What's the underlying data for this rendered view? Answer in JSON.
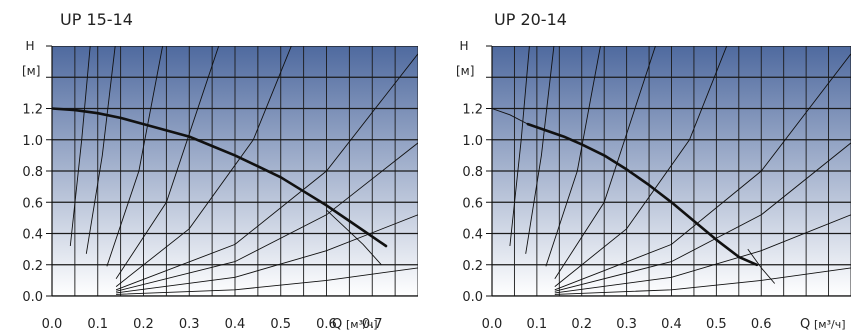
{
  "chart_data": [
    {
      "type": "line",
      "title": "UP 15-14",
      "ylabel": "H",
      "ylabel_unit": "[м]",
      "xlabel": "Q",
      "xlabel_unit": "[м³/ч]",
      "xlim": [
        0,
        0.8
      ],
      "ylim": [
        0,
        1.6
      ],
      "xticks": [
        0.0,
        0.1,
        0.2,
        0.3,
        0.4,
        0.5,
        0.6,
        0.7
      ],
      "xtick_labels": [
        "0.0",
        "0.1",
        "0.2",
        "0.3",
        "0.4",
        "0.5",
        "0.6",
        "0.7"
      ],
      "yticks": [
        0.0,
        0.2,
        0.4,
        0.6,
        0.8,
        1.0,
        1.2
      ],
      "ytick_labels": [
        "0.0",
        "0.2",
        "0.4",
        "0.6",
        "0.8",
        "1.0",
        "1.2"
      ],
      "grid": true,
      "colors": {
        "top": "#4f6a9f",
        "bottom": "#ffffff",
        "curve": "#111111",
        "grid": "#1a1a1a"
      },
      "series": [
        {
          "role": "pump-curve",
          "x": [
            0.0,
            0.05,
            0.1,
            0.15,
            0.2,
            0.25,
            0.3,
            0.35,
            0.4,
            0.45,
            0.5,
            0.55,
            0.6,
            0.65,
            0.7,
            0.73
          ],
          "y": [
            1.2,
            1.19,
            1.17,
            1.14,
            1.1,
            1.06,
            1.02,
            0.96,
            0.9,
            0.83,
            0.76,
            0.67,
            0.58,
            0.48,
            0.38,
            0.32
          ]
        }
      ],
      "system_curves": [
        {
          "x": [
            0.04,
            0.065,
            0.085
          ],
          "y": [
            0.32,
            1.0,
            1.65
          ]
        },
        {
          "x": [
            0.075,
            0.11,
            0.14
          ],
          "y": [
            0.27,
            0.9,
            1.65
          ]
        },
        {
          "x": [
            0.12,
            0.19,
            0.245
          ],
          "y": [
            0.19,
            0.8,
            1.65
          ]
        },
        {
          "x": [
            0.14,
            0.25,
            0.37
          ],
          "y": [
            0.11,
            0.6,
            1.65
          ]
        },
        {
          "x": [
            0.14,
            0.3,
            0.44,
            0.53
          ],
          "y": [
            0.06,
            0.43,
            1.0,
            1.65
          ]
        },
        {
          "x": [
            0.14,
            0.4,
            0.6,
            0.8
          ],
          "y": [
            0.04,
            0.33,
            0.8,
            1.55
          ]
        },
        {
          "x": [
            0.14,
            0.4,
            0.6,
            0.8
          ],
          "y": [
            0.03,
            0.22,
            0.52,
            0.98
          ]
        },
        {
          "x": [
            0.14,
            0.4,
            0.6,
            0.8
          ],
          "y": [
            0.02,
            0.12,
            0.29,
            0.52
          ]
        },
        {
          "x": [
            0.14,
            0.4,
            0.6,
            0.8
          ],
          "y": [
            0.01,
            0.04,
            0.1,
            0.18
          ]
        },
        {
          "x": [
            0.6,
            0.68,
            0.72
          ],
          "y": [
            0.55,
            0.33,
            0.2
          ]
        }
      ]
    },
    {
      "type": "line",
      "title": "UP 20-14",
      "ylabel": "H",
      "ylabel_unit": "[м]",
      "xlabel": "Q",
      "xlabel_unit": "[м³/ч]",
      "xlim": [
        0,
        0.8
      ],
      "ylim": [
        0,
        1.6
      ],
      "xticks": [
        0.0,
        0.1,
        0.2,
        0.3,
        0.4,
        0.5,
        0.6
      ],
      "xtick_labels": [
        "0.0",
        "0.1",
        "0.2",
        "0.3",
        "0.4",
        "0.5",
        "0.6"
      ],
      "yticks": [
        0.0,
        0.2,
        0.4,
        0.6,
        0.8,
        1.0,
        1.2
      ],
      "ytick_labels": [
        "0.0",
        "0.2",
        "0.4",
        "0.6",
        "0.8",
        "1.0",
        "1.2"
      ],
      "grid": true,
      "colors": {
        "top": "#4f6a9f",
        "bottom": "#ffffff",
        "curve": "#111111",
        "grid": "#1a1a1a"
      },
      "series": [
        {
          "role": "pump-curve",
          "x": [
            0.08,
            0.12,
            0.16,
            0.2,
            0.25,
            0.3,
            0.35,
            0.4,
            0.45,
            0.5,
            0.55,
            0.59
          ],
          "y": [
            1.1,
            1.06,
            1.02,
            0.97,
            0.9,
            0.81,
            0.71,
            0.6,
            0.48,
            0.36,
            0.25,
            0.2
          ]
        }
      ],
      "system_curves": [
        {
          "x": [
            0.04,
            0.065,
            0.085
          ],
          "y": [
            0.32,
            1.0,
            1.65
          ]
        },
        {
          "x": [
            0.075,
            0.11,
            0.14
          ],
          "y": [
            0.27,
            0.9,
            1.65
          ]
        },
        {
          "x": [
            0.12,
            0.19,
            0.245
          ],
          "y": [
            0.19,
            0.8,
            1.65
          ]
        },
        {
          "x": [
            0.14,
            0.25,
            0.37
          ],
          "y": [
            0.11,
            0.6,
            1.65
          ]
        },
        {
          "x": [
            0.14,
            0.3,
            0.44,
            0.53
          ],
          "y": [
            0.06,
            0.43,
            1.0,
            1.65
          ]
        },
        {
          "x": [
            0.14,
            0.4,
            0.6,
            0.8
          ],
          "y": [
            0.04,
            0.33,
            0.8,
            1.55
          ]
        },
        {
          "x": [
            0.14,
            0.4,
            0.6,
            0.8
          ],
          "y": [
            0.03,
            0.22,
            0.52,
            0.98
          ]
        },
        {
          "x": [
            0.14,
            0.4,
            0.6,
            0.8
          ],
          "y": [
            0.02,
            0.12,
            0.29,
            0.52
          ]
        },
        {
          "x": [
            0.14,
            0.4,
            0.6,
            0.8
          ],
          "y": [
            0.01,
            0.04,
            0.1,
            0.18
          ]
        },
        {
          "x": [
            0.0,
            0.04,
            0.08
          ],
          "y": [
            1.2,
            1.16,
            1.1
          ]
        },
        {
          "x": [
            0.57,
            0.6,
            0.63
          ],
          "y": [
            0.3,
            0.18,
            0.08
          ]
        }
      ]
    }
  ]
}
